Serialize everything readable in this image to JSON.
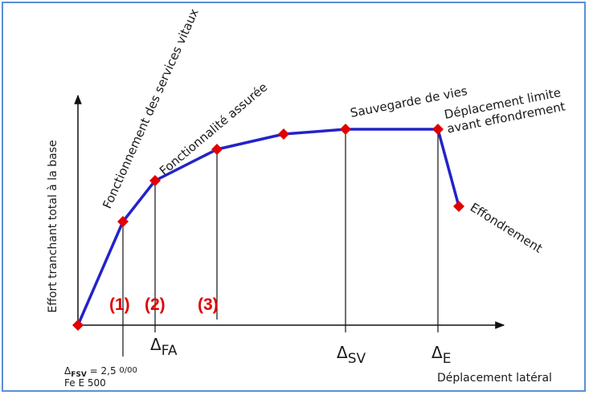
{
  "chart_data": {
    "type": "line",
    "xlabel": "Déplacement latéral",
    "ylabel": "Effort tranchant total à la base",
    "colors": {
      "line": "#2323c8",
      "marker": "#e00000",
      "frame": "#5b8fd6",
      "zone_labels": "#e00000"
    },
    "points": [
      {
        "x": 0.0,
        "y": 0.0
      },
      {
        "x": 1.0,
        "y": 0.53
      },
      {
        "x": 1.7,
        "y": 0.74
      },
      {
        "x": 3.1,
        "y": 0.88
      },
      {
        "x": 4.6,
        "y": 0.96
      },
      {
        "x": 6.0,
        "y": 0.98
      },
      {
        "x": 8.1,
        "y": 0.98
      },
      {
        "x": 8.6,
        "y": 0.6
      }
    ],
    "point_labels": [
      "",
      "Fonctionnement des services vitaux",
      "Fonctionnalité assurée",
      "",
      "",
      "Sauvegarde de vies",
      [
        "Déplacement limite",
        "avant effondrement"
      ],
      "Effondrement"
    ],
    "zone_labels": [
      "(1)",
      "(2)",
      "(3)"
    ],
    "x_ticks": [
      {
        "x": 1.7,
        "main": "Δ",
        "sub": "FA"
      },
      {
        "x": 6.0,
        "main": "Δ",
        "sub": "SV"
      },
      {
        "x": 8.1,
        "main": "Δ",
        "sub": "E"
      }
    ],
    "bottom_note": [
      "Δ",
      "FSV",
      " = 2,5 ",
      "0/00",
      "Fe E 500"
    ]
  }
}
